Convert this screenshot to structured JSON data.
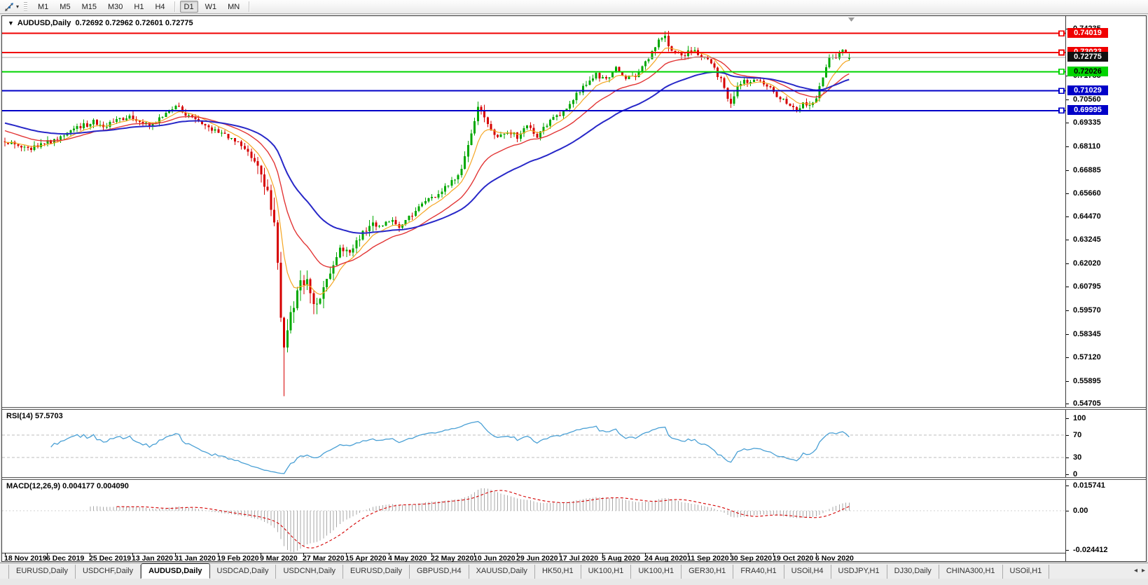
{
  "icons": {
    "collapse": "▼",
    "caret": "▾",
    "tab_left": "◂",
    "tab_right": "▸"
  },
  "toolbar": {
    "timeframes": [
      "M1",
      "M5",
      "M15",
      "M30",
      "H1",
      "H4",
      "D1",
      "W1",
      "MN"
    ],
    "selected_timeframe": "D1"
  },
  "chart": {
    "symbol_title": "AUDUSD,Daily",
    "ohlc_text": "0.72692 0.72962 0.72601 0.72775",
    "current_price": "0.72775",
    "price_axis_ticks": [
      "0.74235",
      "0.71785",
      "0.70560",
      "0.69335",
      "0.68110",
      "0.66885",
      "0.65660",
      "0.64470",
      "0.63245",
      "0.62020",
      "0.60795",
      "0.59570",
      "0.58345",
      "0.57120",
      "0.55895",
      "0.54705"
    ],
    "hline_badges": [
      {
        "label": "0.74019",
        "value": 0.74019,
        "bg": "#f00000",
        "fg": "#ffffff",
        "line": "#f00000",
        "width": 2
      },
      {
        "label": "0.73023",
        "value": 0.73023,
        "bg": "#f00000",
        "fg": "#ffffff",
        "line": "#f00000",
        "width": 2
      },
      {
        "label": "0.72775",
        "value": 0.72775,
        "bg": "#111111",
        "fg": "#ffffff",
        "line": "#ababab",
        "width": 1
      },
      {
        "label": "0.72026",
        "value": 0.72026,
        "bg": "#00d400",
        "fg": "#000000",
        "line": "#00d400",
        "width": 2
      },
      {
        "label": "0.71029",
        "value": 0.71029,
        "bg": "#0000c8",
        "fg": "#ffffff",
        "line": "#0000c8",
        "width": 2
      },
      {
        "label": "0.69995",
        "value": 0.69995,
        "bg": "#0000c8",
        "fg": "#ffffff",
        "line": "#0000c8",
        "width": 2
      }
    ],
    "date_axis": [
      "18 Nov 2019",
      "6 Dec 2019",
      "25 Dec 2019",
      "13 Jan 2020",
      "31 Jan 2020",
      "19 Feb 2020",
      "9 Mar 2020",
      "27 Mar 2020",
      "15 Apr 2020",
      "4 May 2020",
      "22 May 2020",
      "10 Jun 2020",
      "29 Jun 2020",
      "17 Jul 2020",
      "5 Aug 2020",
      "24 Aug 2020",
      "11 Sep 2020",
      "30 Sep 2020",
      "19 Oct 2020",
      "6 Nov 2020"
    ]
  },
  "rsi": {
    "label": "RSI(14) 57.5703",
    "axis": [
      "100",
      "70",
      "30",
      "0"
    ],
    "dashed_levels": [
      70,
      30
    ]
  },
  "macd": {
    "label": "MACD(12,26,9) 0.004177 0.004090",
    "axis_top": "0.015741",
    "axis_zero": "0.00",
    "axis_bottom": "-0.024412"
  },
  "tabs": {
    "items": [
      "EURUSD,Daily",
      "USDCHF,Daily",
      "AUDUSD,Daily",
      "USDCAD,Daily",
      "USDCNH,Daily",
      "EURUSD,Daily",
      "GBPUSD,H4",
      "XAUUSD,Daily",
      "HK50,H1",
      "UK100,H1",
      "UK100,H1",
      "GER30,H1",
      "FRA40,H1",
      "USOil,H4",
      "USDJPY,H1",
      "DJ30,Daily",
      "CHINA300,H1",
      "USOil,H1"
    ],
    "active_index": 2
  },
  "chart_data": {
    "type": "candlestick",
    "symbol": "AUDUSD",
    "timeframe": "Daily",
    "num_candles": 258,
    "ohlc_current": {
      "open": 0.72692,
      "high": 0.72962,
      "low": 0.72601,
      "close": 0.72775
    },
    "price_range": {
      "top": 0.7492,
      "bottom": 0.5455
    },
    "horizontal_levels": [
      0.74019,
      0.73023,
      0.72026,
      0.71029,
      0.69995
    ],
    "price_keypoints": [
      [
        0,
        0.6845
      ],
      [
        4,
        0.6815
      ],
      [
        7,
        0.6795
      ],
      [
        11,
        0.6825
      ],
      [
        15,
        0.6845
      ],
      [
        19,
        0.6885
      ],
      [
        23,
        0.6915
      ],
      [
        27,
        0.694
      ],
      [
        30,
        0.6915
      ],
      [
        34,
        0.6945
      ],
      [
        38,
        0.6968
      ],
      [
        41,
        0.694
      ],
      [
        44,
        0.6918
      ],
      [
        48,
        0.6972
      ],
      [
        52,
        0.7018
      ],
      [
        54,
        0.7
      ],
      [
        57,
        0.6958
      ],
      [
        60,
        0.6935
      ],
      [
        63,
        0.6905
      ],
      [
        66,
        0.688
      ],
      [
        69,
        0.6848
      ],
      [
        72,
        0.6818
      ],
      [
        75,
        0.6765
      ],
      [
        78,
        0.6665
      ],
      [
        80,
        0.656
      ],
      [
        82,
        0.642
      ],
      [
        84,
        0.592
      ],
      [
        85,
        0.5765
      ],
      [
        86,
        0.588
      ],
      [
        88,
        0.5985
      ],
      [
        90,
        0.608
      ],
      [
        92,
        0.613
      ],
      [
        94,
        0.5965
      ],
      [
        96,
        0.602
      ],
      [
        98,
        0.6105
      ],
      [
        100,
        0.619
      ],
      [
        102,
        0.6285
      ],
      [
        104,
        0.6255
      ],
      [
        107,
        0.632
      ],
      [
        110,
        0.6375
      ],
      [
        112,
        0.642
      ],
      [
        114,
        0.639
      ],
      [
        117,
        0.643
      ],
      [
        120,
        0.64
      ],
      [
        123,
        0.6445
      ],
      [
        126,
        0.649
      ],
      [
        129,
        0.654
      ],
      [
        132,
        0.656
      ],
      [
        135,
        0.6615
      ],
      [
        138,
        0.6665
      ],
      [
        140,
        0.675
      ],
      [
        142,
        0.688
      ],
      [
        144,
        0.7015
      ],
      [
        146,
        0.6965
      ],
      [
        148,
        0.69
      ],
      [
        150,
        0.687
      ],
      [
        153,
        0.6898
      ],
      [
        156,
        0.6862
      ],
      [
        159,
        0.6925
      ],
      [
        162,
        0.687
      ],
      [
        165,
        0.6932
      ],
      [
        168,
        0.6975
      ],
      [
        171,
        0.7
      ],
      [
        174,
        0.7088
      ],
      [
        177,
        0.7135
      ],
      [
        180,
        0.7185
      ],
      [
        183,
        0.716
      ],
      [
        186,
        0.7222
      ],
      [
        189,
        0.717
      ],
      [
        192,
        0.7185
      ],
      [
        195,
        0.7252
      ],
      [
        198,
        0.733
      ],
      [
        200,
        0.7385
      ],
      [
        201,
        0.739
      ],
      [
        202,
        0.7345
      ],
      [
        204,
        0.73
      ],
      [
        206,
        0.7288
      ],
      [
        208,
        0.7305
      ],
      [
        210,
        0.7322
      ],
      [
        212,
        0.7288
      ],
      [
        214,
        0.7262
      ],
      [
        216,
        0.7215
      ],
      [
        218,
        0.716
      ],
      [
        220,
        0.7075
      ],
      [
        221,
        0.7042
      ],
      [
        223,
        0.712
      ],
      [
        225,
        0.7168
      ],
      [
        227,
        0.714
      ],
      [
        229,
        0.7162
      ],
      [
        231,
        0.7128
      ],
      [
        233,
        0.7118
      ],
      [
        235,
        0.7082
      ],
      [
        237,
        0.706
      ],
      [
        239,
        0.703
      ],
      [
        241,
        0.6998
      ],
      [
        243,
        0.7048
      ],
      [
        245,
        0.7028
      ],
      [
        247,
        0.7075
      ],
      [
        249,
        0.718
      ],
      [
        251,
        0.7282
      ],
      [
        253,
        0.7268
      ],
      [
        255,
        0.7308
      ],
      [
        256,
        0.7295
      ],
      [
        257,
        0.72775
      ]
    ],
    "volatility": [
      [
        75,
        81,
        2.0
      ],
      [
        82,
        97,
        3.2
      ],
      [
        98,
        112,
        1.7
      ],
      [
        140,
        147,
        1.5
      ],
      [
        198,
        222,
        1.25
      ]
    ],
    "special_candles": {
      "84": {
        "c": 0.592
      },
      "85": {
        "l": 0.5512,
        "c": 0.5765
      },
      "201": {
        "h": 0.7414
      },
      "257": {
        "o": 0.72692,
        "h": 0.72962,
        "l": 0.72601,
        "c": 0.72775
      }
    },
    "indicators": {
      "moving_averages": [
        {
          "type": "ema",
          "period": 8,
          "color": "#f5a623",
          "width": 1.2,
          "init": null
        },
        {
          "type": "ema",
          "period": 21,
          "color": "#e23636",
          "width": 1.4,
          "init": 0.6895
        },
        {
          "type": "ema",
          "period": 45,
          "color": "#2828c8",
          "width": 2,
          "init": 0.6935
        }
      ],
      "rsi": {
        "period": 14,
        "last": 57.5703,
        "color": "#4aa0d5"
      },
      "macd": {
        "fast": 12,
        "slow": 26,
        "signal": 9,
        "last_main": 0.004177,
        "last_signal": 0.00409,
        "hist_color": "#a8a8a8",
        "signal_color": "#d40000",
        "axis_range": {
          "top": 0.015741,
          "bottom": -0.024412
        }
      }
    },
    "colors": {
      "up": "#00a800",
      "down": "#d60000"
    }
  }
}
